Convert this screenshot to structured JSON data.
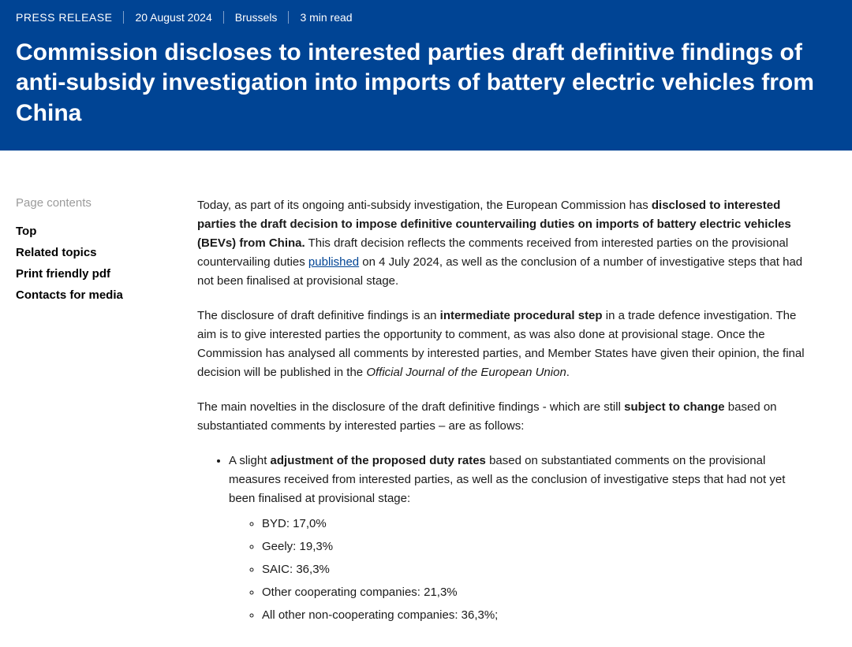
{
  "header": {
    "doc_type": "PRESS RELEASE",
    "date": "20 August 2024",
    "location": "Brussels",
    "read_time": "3 min read",
    "title": "Commission discloses to interested parties draft definitive findings of anti-subsidy investigation into imports of battery electric vehicles from China"
  },
  "sidebar": {
    "heading": "Page contents",
    "items": [
      "Top",
      "Related topics",
      "Print friendly pdf",
      "Contacts for media"
    ]
  },
  "body": {
    "p1_a": "Today, as part of its ongoing anti-subsidy investigation, the European Commission has ",
    "p1_bold": "disclosed to interested parties the draft decision to impose definitive countervailing duties on imports of battery electric vehicles (BEVs) from China.",
    "p1_b": " This draft decision reflects the comments received from interested parties on the provisional countervailing duties ",
    "p1_link": "published",
    "p1_c": " on 4 July 2024, as well as the conclusion of a number of investigative steps that had not been finalised at provisional stage.",
    "p2_a": "The disclosure of draft definitive findings is an ",
    "p2_bold": "intermediate procedural step",
    "p2_b": " in a trade defence investigation. The aim is to give interested parties the opportunity to comment, as was also done at provisional stage. Once the Commission has analysed all comments by interested parties, and Member States have given their opinion, the final decision will be published in the ",
    "p2_em": "Official Journal of the European Union",
    "p2_c": ".",
    "p3_a": "The main novelties in the disclosure of the draft definitive findings - which are still ",
    "p3_bold": "subject to change",
    "p3_b": " based on substantiated comments by interested parties – are as follows:",
    "li1_a": "A slight ",
    "li1_bold": "adjustment of the proposed duty rates",
    "li1_b": " based on substantiated comments on the provisional measures received from interested parties, as well as the conclusion of investigative steps that had not yet been finalised at provisional stage:",
    "rates": [
      "BYD: 17,0%",
      "Geely: 19,3%",
      "SAIC: 36,3%",
      "Other cooperating companies: 21,3%",
      "All other non-cooperating companies: 36,3%;"
    ]
  },
  "colors": {
    "header_bg": "#004494",
    "link": "#004494",
    "text": "#1a1a1a",
    "muted": "#9b9b9b"
  }
}
